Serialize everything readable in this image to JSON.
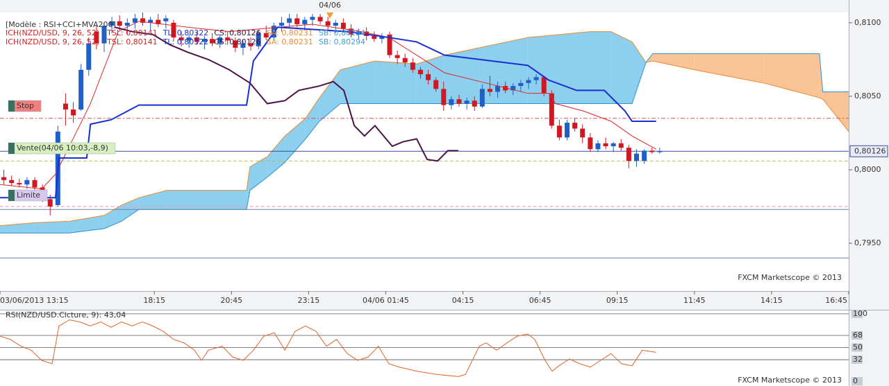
{
  "chart_data": [
    {
      "type": "candlestick",
      "model": "[Modèle : RSI+CCI+MVA200]",
      "legend": [
        {
          "text": "ICH(NZD/USD, 9, 26, 52) - TSL: 0,80141",
          "color": "#d42020"
        },
        {
          "text": "TL: 0,80322",
          "color": "#1a2fc8"
        },
        {
          "text": "CS: 0,80126",
          "color": "#3a1040"
        },
        {
          "text": "SA: 0,80231",
          "color": "#f08a30"
        },
        {
          "text": "SB: 0,80294",
          "color": "#3aa0e0"
        }
      ],
      "up_color": "#1f5fc8",
      "down_color": "#d01822",
      "x": [
        0.125,
        0.375,
        0.625,
        0.875,
        1.125,
        1.375,
        1.625,
        1.875,
        2.125,
        2.375,
        2.625,
        2.875,
        3.125,
        3.375,
        3.625,
        3.875,
        4.125,
        4.375,
        4.625,
        4.875,
        5.125,
        5.375,
        5.625,
        5.875,
        6.125,
        6.375,
        6.625,
        6.875,
        7.125,
        7.375,
        7.625,
        7.875,
        8.125,
        8.375,
        8.625,
        8.875,
        9.125,
        9.375,
        9.625,
        9.875,
        10.125,
        10.375,
        10.625,
        10.875,
        11.125,
        11.375,
        11.625,
        11.875,
        12.125,
        12.375,
        12.625,
        12.875,
        13.125,
        13.375,
        13.625,
        13.875,
        14.125,
        14.375,
        14.625,
        14.875,
        15.125,
        15.375,
        15.625,
        15.875,
        16.125,
        16.375,
        16.625,
        16.875,
        17.125,
        17.375,
        17.625,
        17.875,
        18.125,
        18.375,
        18.625,
        18.875,
        19.125,
        19.375,
        19.625,
        19.875,
        20.125,
        20.375,
        20.625,
        20.875,
        21.125,
        21.375
      ],
      "open": [
        0.7995,
        0.7993,
        0.7991,
        0.799,
        0.7993,
        0.7988,
        0.798,
        0.7976,
        0.8045,
        0.8041,
        0.8041,
        0.8068,
        0.8094,
        0.8086,
        0.8098,
        0.8101,
        0.8098,
        0.81,
        0.8103,
        0.81,
        0.8102,
        0.8101,
        0.81,
        0.809,
        0.8088,
        0.809,
        0.8087,
        0.8089,
        0.8086,
        0.809,
        0.8088,
        0.8083,
        0.8086,
        0.8084,
        0.8093,
        0.809,
        0.8098,
        0.81,
        0.8103,
        0.8099,
        0.8102,
        0.8104,
        0.8101,
        0.8098,
        0.81,
        0.8096,
        0.8092,
        0.8094,
        0.8091,
        0.8089,
        0.8092,
        0.8078,
        0.8076,
        0.8073,
        0.8068,
        0.8065,
        0.8061,
        0.8055,
        0.8044,
        0.8048,
        0.8045,
        0.8047,
        0.8043,
        0.8055,
        0.8053,
        0.8057,
        0.8054,
        0.8057,
        0.8059,
        0.8061,
        0.8063,
        0.8052,
        0.803,
        0.8022,
        0.8032,
        0.8028,
        0.8022,
        0.8014,
        0.8018,
        0.8016,
        0.8018,
        0.8015,
        0.8006,
        0.8006,
        0.8013,
        0.8012
      ],
      "high": [
        0.8,
        0.7996,
        0.7994,
        0.7995,
        0.7995,
        0.799,
        0.7983,
        0.803,
        0.8052,
        0.8046,
        0.8072,
        0.809,
        0.8098,
        0.81,
        0.8104,
        0.8105,
        0.8103,
        0.8106,
        0.8107,
        0.8104,
        0.8106,
        0.8105,
        0.8102,
        0.8094,
        0.8092,
        0.8094,
        0.8091,
        0.8093,
        0.8092,
        0.8094,
        0.809,
        0.8088,
        0.809,
        0.8095,
        0.8098,
        0.81,
        0.8104,
        0.8106,
        0.8106,
        0.8104,
        0.8106,
        0.8106,
        0.8104,
        0.8102,
        0.8103,
        0.8099,
        0.8096,
        0.8097,
        0.8094,
        0.8093,
        0.8094,
        0.8081,
        0.8079,
        0.8076,
        0.807,
        0.8068,
        0.8063,
        0.806,
        0.805,
        0.8051,
        0.8049,
        0.805,
        0.8058,
        0.8064,
        0.806,
        0.806,
        0.8059,
        0.8061,
        0.8063,
        0.8065,
        0.8064,
        0.8054,
        0.8034,
        0.8034,
        0.8035,
        0.8031,
        0.8025,
        0.802,
        0.8022,
        0.8019,
        0.8021,
        0.8017,
        0.8014,
        0.8014,
        0.8015,
        0.8015
      ],
      "low": [
        0.799,
        0.7989,
        0.7988,
        0.7987,
        0.7986,
        0.7978,
        0.7969,
        0.7975,
        0.803,
        0.8032,
        0.804,
        0.8064,
        0.8082,
        0.808,
        0.8093,
        0.8095,
        0.8092,
        0.8096,
        0.8098,
        0.8095,
        0.8097,
        0.8096,
        0.8088,
        0.8084,
        0.8083,
        0.8085,
        0.8082,
        0.8084,
        0.8083,
        0.8085,
        0.808,
        0.8078,
        0.8081,
        0.8082,
        0.8088,
        0.8088,
        0.8094,
        0.8096,
        0.8097,
        0.8095,
        0.8098,
        0.8099,
        0.8095,
        0.8093,
        0.8094,
        0.809,
        0.8089,
        0.8088,
        0.8087,
        0.8086,
        0.8076,
        0.8072,
        0.807,
        0.8066,
        0.8062,
        0.8058,
        0.8053,
        0.804,
        0.8041,
        0.8043,
        0.8041,
        0.804,
        0.8042,
        0.805,
        0.8049,
        0.8052,
        0.8051,
        0.8053,
        0.8055,
        0.8058,
        0.805,
        0.8028,
        0.802,
        0.802,
        0.8026,
        0.8018,
        0.8012,
        0.8012,
        0.8014,
        0.8012,
        0.8013,
        0.8001,
        0.8002,
        0.8004,
        0.8011,
        0.8011
      ],
      "close": [
        0.7993,
        0.7991,
        0.799,
        0.7993,
        0.7988,
        0.798,
        0.7975,
        0.8026,
        0.8041,
        0.8037,
        0.8068,
        0.8086,
        0.8086,
        0.8098,
        0.8101,
        0.8098,
        0.81,
        0.8103,
        0.81,
        0.8102,
        0.8099,
        0.8103,
        0.809,
        0.8088,
        0.809,
        0.8087,
        0.8089,
        0.8086,
        0.809,
        0.8088,
        0.8083,
        0.8086,
        0.8084,
        0.8093,
        0.809,
        0.8098,
        0.81,
        0.8103,
        0.8099,
        0.8102,
        0.8104,
        0.8101,
        0.8098,
        0.81,
        0.8096,
        0.8092,
        0.8094,
        0.8091,
        0.8089,
        0.8091,
        0.8078,
        0.8076,
        0.8073,
        0.8068,
        0.8065,
        0.8061,
        0.8055,
        0.8044,
        0.8048,
        0.8045,
        0.8047,
        0.8043,
        0.8055,
        0.8053,
        0.8057,
        0.8054,
        0.8057,
        0.8059,
        0.8061,
        0.8063,
        0.8052,
        0.803,
        0.8022,
        0.8032,
        0.8028,
        0.8022,
        0.8014,
        0.8018,
        0.8016,
        0.8018,
        0.8015,
        0.8006,
        0.8011,
        0.8013,
        0.8012,
        0.80126
      ],
      "lines": [
        {
          "color": "#e02424",
          "width": 1,
          "x": [
            0,
            1.35,
            1.8,
            2.93,
            3.83,
            4.5,
            6.08,
            7.43,
            10.13,
            11.7,
            12.6,
            13.5,
            14.4,
            15.75,
            17.1,
            17.78,
            18.0,
            18.9,
            19.8,
            20.48,
            21.26
          ],
          "values": [
            0.799,
            0.7987,
            0.7997,
            0.8045,
            0.8094,
            0.8101,
            0.8097,
            0.8094,
            0.8099,
            0.8094,
            0.809,
            0.8078,
            0.8066,
            0.8059,
            0.8052,
            0.8052,
            0.8045,
            0.804,
            0.8033,
            0.8023,
            0.8014
          ]
        },
        {
          "color": "#1a2fd0",
          "width": 2,
          "x": [
            0,
            1.8,
            1.91,
            2.81,
            2.93,
            3.6,
            4.5,
            7.99,
            8.21,
            9.0,
            11.25,
            12.6,
            13.5,
            14.4,
            17.1,
            17.78,
            18.68,
            19.58,
            20.25,
            20.48,
            21.26
          ],
          "values": [
            0.7981,
            0.7981,
            0.8008,
            0.8008,
            0.8031,
            0.8034,
            0.8044,
            0.8044,
            0.8074,
            0.8097,
            0.8094,
            0.809,
            0.8087,
            0.8078,
            0.8071,
            0.8061,
            0.8054,
            0.8054,
            0.804,
            0.8033,
            0.8033
          ]
        },
        {
          "color": "#4a1248",
          "width": 2,
          "x": [
            3.71,
            4.28,
            4.95,
            5.51,
            6.08,
            6.75,
            7.43,
            8.1,
            8.66,
            9.23,
            9.68,
            10.35,
            10.8,
            11.14,
            11.48,
            11.81,
            12.15,
            12.71,
            13.05,
            13.5,
            13.84,
            14.18,
            14.51,
            14.85
          ],
          "values": [
            0.8097,
            0.8094,
            0.8092,
            0.8085,
            0.808,
            0.8075,
            0.8068,
            0.8059,
            0.8045,
            0.8047,
            0.8054,
            0.8057,
            0.806,
            0.8054,
            0.803,
            0.8023,
            0.803,
            0.8016,
            0.8019,
            0.8021,
            0.8007,
            0.8006,
            0.8013,
            0.8013
          ]
        }
      ],
      "cloud": {
        "up_color": "#8ccfee",
        "down_color": "#f8c497",
        "a_color": "#f08a30",
        "b_color": "#2a90d8",
        "x": [
          0,
          1.13,
          2.25,
          3.38,
          3.94,
          4.5,
          5.4,
          7.99,
          8.1,
          8.66,
          9.23,
          9.9,
          10.35,
          11.03,
          12.15,
          13.5,
          14.4,
          15.53,
          17.1,
          19.13,
          19.8,
          20.48,
          20.93,
          21.15,
          22.5,
          24.75,
          26.55,
          26.66,
          27.5
        ],
        "span_a": [
          0.7962,
          0.7964,
          0.7965,
          0.7969,
          0.7976,
          0.7981,
          0.7986,
          0.7986,
          0.8002,
          0.8009,
          0.8023,
          0.8035,
          0.8049,
          0.8068,
          0.8074,
          0.8072,
          0.8078,
          0.8083,
          0.809,
          0.8094,
          0.8094,
          0.8087,
          0.8073,
          0.8074,
          0.8068,
          0.8059,
          0.8049,
          0.8048,
          0.8026
        ],
        "span_b": [
          0.7957,
          0.7957,
          0.7957,
          0.796,
          0.7965,
          0.7973,
          0.7973,
          0.7973,
          0.7986,
          0.7995,
          0.8005,
          0.8021,
          0.8033,
          0.8045,
          0.8045,
          0.8045,
          0.8045,
          0.8045,
          0.8045,
          0.8045,
          0.8045,
          0.8045,
          0.8073,
          0.8079,
          0.8079,
          0.8079,
          0.8079,
          0.8053,
          0.8053
        ]
      },
      "levels": [
        {
          "value": 0.8035,
          "color": "#e05050",
          "dash": "6 3 2 3"
        },
        {
          "value": 0.8006,
          "color": "#b8b860",
          "dash": "5 3"
        },
        {
          "value": 0.7975,
          "color": "#e0a0c0",
          "dash": "5 3"
        },
        {
          "value": 0.7973,
          "color": "#7080a8",
          "dash": ""
        },
        {
          "value": 0.794,
          "color": "#7080a8",
          "dash": ""
        },
        {
          "value": 0.80126,
          "color": "#3a4aa0",
          "dash": ""
        }
      ],
      "orders": [
        {
          "label": "Stop",
          "color": "#f08080"
        },
        {
          "label": "Vente(04/06 10:03,-8,9)",
          "color": "#d8f0c0"
        },
        {
          "label": "Limite",
          "color": "#d8c8f0"
        }
      ],
      "marker": {
        "x": 10.69,
        "label": "04/06",
        "color": "#f0a030"
      },
      "last_price": {
        "value": 0.80126,
        "label": "0,80126"
      },
      "watermark": "FXCM Marketscope © 2013",
      "xlim": [
        0,
        27.5
      ],
      "ylim": [
        0.79175,
        0.8107
      ],
      "xticks": [
        {
          "value": 0,
          "label": "03/06/2013 13:15"
        },
        {
          "value": 5,
          "label": "18:15"
        },
        {
          "value": 7.5,
          "label": "20:45"
        },
        {
          "value": 10,
          "label": "23:15"
        },
        {
          "value": 12.5,
          "label": "04/06 01:45"
        },
        {
          "value": 15,
          "label": "04:15"
        },
        {
          "value": 17.5,
          "label": "06:45"
        },
        {
          "value": 20,
          "label": "09:15"
        },
        {
          "value": 22.5,
          "label": "11:45"
        },
        {
          "value": 25,
          "label": "14:15"
        },
        {
          "value": 27.5,
          "label": "16:45"
        }
      ],
      "yticks": [
        {
          "value": 0.81,
          "label": "0,8100"
        },
        {
          "value": 0.805,
          "label": "0,8050"
        },
        {
          "value": 0.8,
          "label": "0,8000"
        },
        {
          "value": 0.795,
          "label": "0,7950"
        }
      ]
    },
    {
      "type": "line",
      "title": "RSI(NZD/USD.Clcture, 9): 43,04",
      "color": "#e06428",
      "x": [
        0,
        0.34,
        0.68,
        1.01,
        1.35,
        1.69,
        1.91,
        2.25,
        2.59,
        2.93,
        3.26,
        3.6,
        3.94,
        4.28,
        4.61,
        4.95,
        5.29,
        5.63,
        5.96,
        6.3,
        6.53,
        6.75,
        7.2,
        7.54,
        7.88,
        8.21,
        8.55,
        8.89,
        9.23,
        9.56,
        9.9,
        10.24,
        10.58,
        10.91,
        11.25,
        11.59,
        11.93,
        12.26,
        12.6,
        12.94,
        13.5,
        14.18,
        14.85,
        15.08,
        15.53,
        15.75,
        16.09,
        16.43,
        16.76,
        17.1,
        17.33,
        17.66,
        17.89,
        18.11,
        18.45,
        18.79,
        19.13,
        19.46,
        19.8,
        20.14,
        20.48,
        20.81,
        21.26
      ],
      "values": [
        67,
        62,
        52,
        46,
        31,
        26,
        82,
        91,
        88,
        82,
        88,
        80,
        88,
        82,
        88,
        82,
        74,
        62,
        57,
        46,
        31,
        46,
        52,
        36,
        31,
        46,
        67,
        72,
        46,
        74,
        82,
        74,
        52,
        62,
        41,
        31,
        36,
        52,
        26,
        21,
        15,
        10,
        7,
        10,
        52,
        57,
        46,
        57,
        67,
        70,
        62,
        31,
        15,
        23,
        33,
        26,
        21,
        31,
        41,
        26,
        23,
        46,
        43
      ],
      "xlim": [
        0,
        27.5
      ],
      "ylim": [
        -7,
        105
      ],
      "yticks": [
        100,
        68,
        50,
        32,
        0
      ],
      "watermark": "FXCM Marketscope © 2013"
    }
  ]
}
